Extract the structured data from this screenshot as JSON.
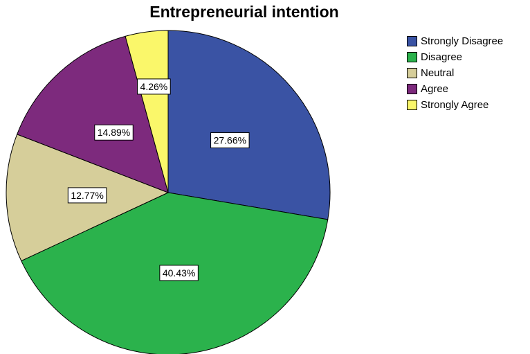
{
  "chart_data": {
    "type": "pie",
    "title": "Entrepreneurial intention",
    "categories": [
      "Strongly Disagree",
      "Disagree",
      "Neutral",
      "Agree",
      "Strongly Agree"
    ],
    "values": [
      27.66,
      40.43,
      12.77,
      14.89,
      4.26
    ],
    "value_labels": [
      "27.66%",
      "40.43%",
      "12.77%",
      "14.89%",
      "4.26%"
    ],
    "unit": "%",
    "colors": [
      "#3A53A4",
      "#2BB24C",
      "#D6CE9A",
      "#7D2A7D",
      "#FAF76A"
    ],
    "legend_position": "top-right",
    "start_angle": "12 o'clock",
    "direction": "clockwise"
  }
}
